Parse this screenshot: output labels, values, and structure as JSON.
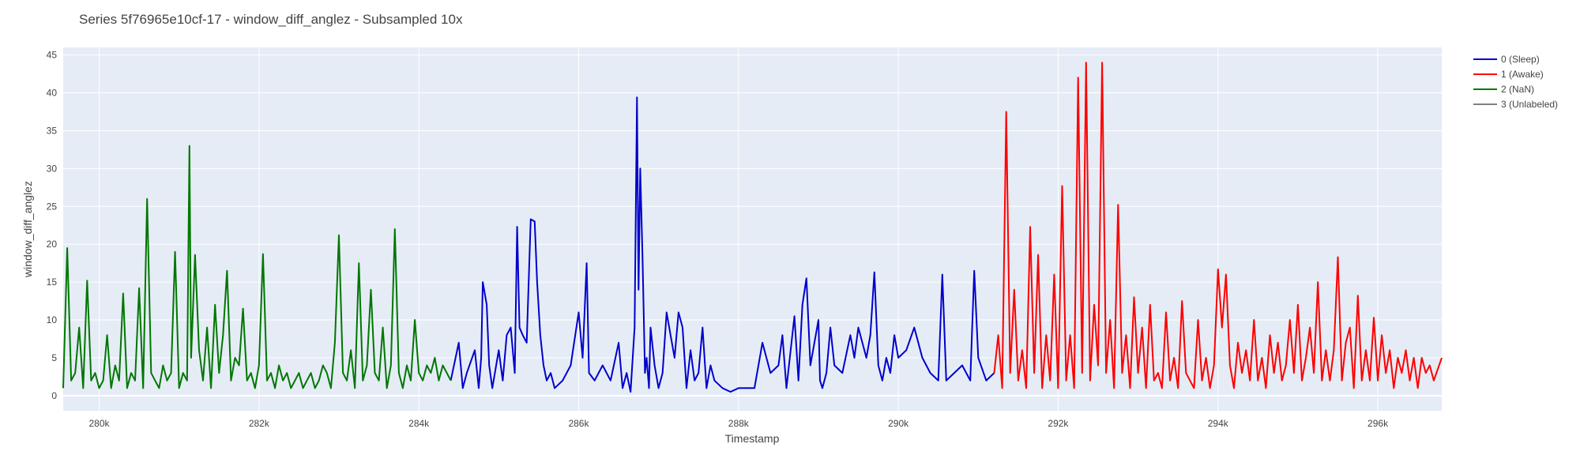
{
  "chart_data": {
    "type": "line",
    "title": "Series 5f76965e10cf-17 - window_diff_anglez - Subsampled 10x",
    "xlabel": "Timestamp",
    "ylabel": "window_diff_anglez",
    "xlim": [
      279550,
      296800
    ],
    "ylim": [
      -2,
      46
    ],
    "grid": true,
    "legend_position": "right",
    "x_ticks": [
      {
        "value": 280000,
        "label": "280k"
      },
      {
        "value": 282000,
        "label": "282k"
      },
      {
        "value": 284000,
        "label": "284k"
      },
      {
        "value": 286000,
        "label": "286k"
      },
      {
        "value": 288000,
        "label": "288k"
      },
      {
        "value": 290000,
        "label": "290k"
      },
      {
        "value": 292000,
        "label": "292k"
      },
      {
        "value": 294000,
        "label": "294k"
      },
      {
        "value": 296000,
        "label": "296k"
      }
    ],
    "y_ticks": [
      {
        "value": 0,
        "label": "0"
      },
      {
        "value": 5,
        "label": "5"
      },
      {
        "value": 10,
        "label": "10"
      },
      {
        "value": 15,
        "label": "15"
      },
      {
        "value": 20,
        "label": "20"
      },
      {
        "value": 25,
        "label": "25"
      },
      {
        "value": 30,
        "label": "30"
      },
      {
        "value": 35,
        "label": "35"
      },
      {
        "value": 40,
        "label": "40"
      },
      {
        "value": 45,
        "label": "45"
      }
    ],
    "series": [
      {
        "name": "0 (Sleep)",
        "color": "#0000cc",
        "x": [
          284400,
          284500,
          284550,
          284600,
          284700,
          284750,
          284780,
          284800,
          284850,
          284880,
          284920,
          285000,
          285050,
          285100,
          285150,
          285200,
          285230,
          285260,
          285300,
          285350,
          285400,
          285450,
          285480,
          285520,
          285560,
          285600,
          285650,
          285700,
          285800,
          285900,
          286000,
          286050,
          286100,
          286130,
          286200,
          286300,
          286400,
          286500,
          286550,
          286600,
          286650,
          286700,
          286730,
          286750,
          286770,
          286800,
          286830,
          286850,
          286880,
          286900,
          286950,
          287000,
          287050,
          287100,
          287150,
          287200,
          287250,
          287300,
          287350,
          287400,
          287450,
          287500,
          287550,
          287600,
          287650,
          287700,
          287800,
          287900,
          288000,
          288200,
          288300,
          288400,
          288500,
          288550,
          288600,
          288700,
          288750,
          288800,
          288850,
          288900,
          288950,
          289000,
          289020,
          289050,
          289100,
          289150,
          289200,
          289300,
          289400,
          289450,
          289500,
          289600,
          289650,
          289700,
          289750,
          289800,
          289850,
          289900,
          289950,
          290000,
          290100,
          290200,
          290300,
          290400,
          290500,
          290550,
          290600,
          290700,
          290800,
          290900,
          290950,
          291000,
          291100,
          291200
        ],
        "y": [
          2,
          7,
          1,
          3,
          6,
          1,
          5,
          15,
          12,
          4,
          1,
          6,
          2,
          8,
          9,
          3,
          22.3,
          9,
          8,
          7,
          23.3,
          23,
          15,
          8,
          4,
          2,
          3,
          1,
          2,
          4,
          11,
          5,
          17.5,
          3,
          2,
          4,
          2,
          7,
          1,
          3,
          0.5,
          9,
          39.4,
          14,
          30,
          18,
          3,
          5,
          1,
          9,
          4,
          1,
          3,
          11,
          8,
          5,
          11,
          9,
          1,
          6,
          2,
          3,
          9,
          1,
          4,
          2,
          1,
          0.5,
          1,
          1,
          7,
          3,
          4,
          8,
          1,
          10.5,
          2,
          12,
          15.5,
          4,
          7,
          10,
          2,
          1,
          3,
          9,
          4,
          3,
          8,
          5,
          9,
          5,
          8,
          16.3,
          4,
          2,
          5,
          3,
          8,
          5,
          6,
          9,
          5,
          3,
          2,
          16,
          2,
          3,
          4,
          2,
          16.5,
          5,
          2,
          3
        ]
      },
      {
        "name": "1 (Awake)",
        "color": "#ff0000",
        "x": [
          291200,
          291250,
          291300,
          291350,
          291400,
          291450,
          291500,
          291550,
          291600,
          291650,
          291700,
          291750,
          291800,
          291850,
          291900,
          291950,
          292000,
          292050,
          292100,
          292150,
          292200,
          292250,
          292300,
          292350,
          292400,
          292450,
          292500,
          292550,
          292600,
          292650,
          292700,
          292750,
          292800,
          292850,
          292900,
          292950,
          293000,
          293050,
          293100,
          293150,
          293200,
          293250,
          293300,
          293350,
          293400,
          293450,
          293500,
          293550,
          293600,
          293650,
          293700,
          293750,
          293800,
          293850,
          293900,
          293950,
          294000,
          294050,
          294100,
          294150,
          294200,
          294250,
          294300,
          294350,
          294400,
          294450,
          294500,
          294550,
          294600,
          294650,
          294700,
          294750,
          294800,
          294850,
          294900,
          294950,
          295000,
          295050,
          295100,
          295150,
          295200,
          295250,
          295300,
          295350,
          295400,
          295450,
          295500,
          295550,
          295600,
          295650,
          295700,
          295750,
          295800,
          295850,
          295900,
          295950,
          296000,
          296050,
          296100,
          296150,
          296200,
          296250,
          296300,
          296350,
          296400,
          296450,
          296500,
          296550,
          296600,
          296650,
          296700,
          296800
        ],
        "y": [
          3,
          8,
          1,
          37.5,
          3,
          14,
          2,
          6,
          1,
          22.3,
          3,
          18.6,
          1,
          8,
          2,
          16,
          1,
          27.7,
          2,
          8,
          1,
          42,
          3,
          44,
          2,
          12,
          4,
          44,
          3,
          10,
          1,
          25.2,
          3,
          8,
          1,
          13,
          3,
          9,
          1,
          12,
          2,
          3,
          1,
          11,
          2,
          5,
          1,
          12.5,
          3,
          2,
          1,
          10,
          2,
          5,
          1,
          4,
          16.7,
          9,
          16,
          4,
          1,
          7,
          3,
          6,
          2,
          10,
          2,
          5,
          1,
          8,
          3,
          7,
          2,
          4,
          10,
          3,
          12,
          2,
          5,
          9,
          3,
          15,
          2,
          6,
          2,
          6,
          18.3,
          2,
          7,
          9,
          1,
          13.2,
          2,
          6,
          2,
          10.3,
          2,
          8,
          3,
          6,
          1,
          5,
          3,
          6,
          2,
          5,
          1,
          5,
          3,
          4,
          2,
          5
        ]
      },
      {
        "name": "2 (NaN)",
        "color": "#007700",
        "x": [
          279550,
          279600,
          279650,
          279700,
          279750,
          279800,
          279850,
          279900,
          279950,
          280000,
          280050,
          280100,
          280150,
          280200,
          280250,
          280300,
          280350,
          280400,
          280450,
          280500,
          280550,
          280600,
          280650,
          280700,
          280750,
          280800,
          280850,
          280900,
          280950,
          281000,
          281050,
          281100,
          281130,
          281150,
          281200,
          281250,
          281300,
          281350,
          281400,
          281450,
          281500,
          281550,
          281600,
          281650,
          281700,
          281750,
          281800,
          281850,
          281900,
          281950,
          282000,
          282050,
          282100,
          282150,
          282200,
          282250,
          282300,
          282350,
          282400,
          282450,
          282500,
          282550,
          282600,
          282650,
          282700,
          282750,
          282800,
          282850,
          282900,
          282950,
          283000,
          283050,
          283100,
          283150,
          283200,
          283250,
          283300,
          283350,
          283400,
          283450,
          283500,
          283550,
          283600,
          283650,
          283700,
          283750,
          283800,
          283850,
          283900,
          283950,
          284000,
          284050,
          284100,
          284150,
          284200,
          284250,
          284300,
          284350,
          284400
        ],
        "y": [
          1,
          19.5,
          2,
          3,
          9,
          1,
          15.2,
          2,
          3,
          1,
          2,
          8,
          1,
          4,
          2,
          13.5,
          1,
          3,
          2,
          14.2,
          1,
          26,
          3,
          2,
          1,
          4,
          2,
          3,
          19,
          1,
          3,
          2,
          33,
          5,
          18.6,
          6,
          2,
          9,
          1,
          12,
          3,
          8,
          16.5,
          2,
          5,
          4,
          11.5,
          2,
          3,
          1,
          4,
          18.7,
          2,
          3,
          1,
          4,
          2,
          3,
          1,
          2,
          3,
          1,
          2,
          3,
          1,
          2,
          4,
          3,
          1,
          7,
          21.2,
          3,
          2,
          6,
          1,
          17.5,
          2,
          4,
          14,
          3,
          2,
          9,
          1,
          4,
          22,
          3,
          1,
          4,
          2,
          10,
          3,
          2,
          4,
          3,
          5,
          2,
          4,
          3,
          2
        ]
      },
      {
        "name": "3 (Unlabeled)",
        "color": "#808080",
        "x": [],
        "y": []
      }
    ]
  }
}
